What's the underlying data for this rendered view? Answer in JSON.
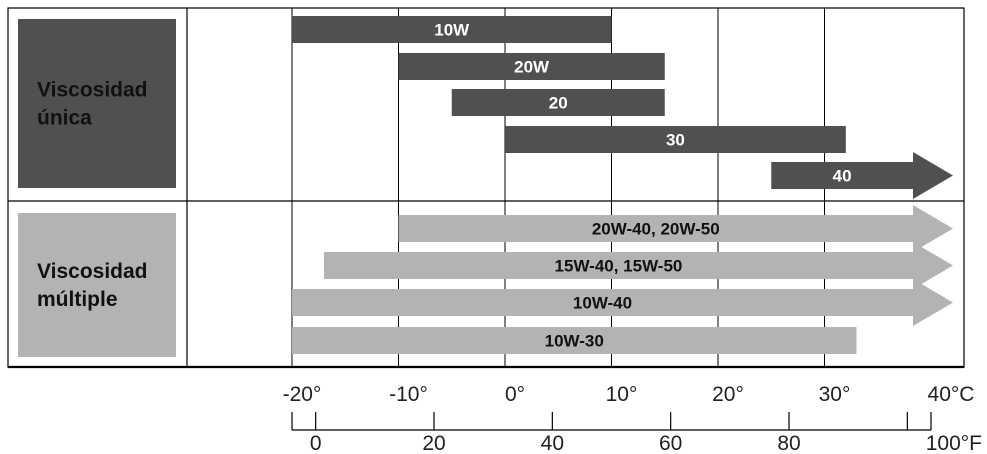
{
  "chart_data": {
    "type": "bar",
    "orientation": "horizontal-range",
    "groups": [
      {
        "label_lines": [
          "Viscosidad",
          "única"
        ],
        "color": "#505050",
        "label_color": "#ffffff",
        "bars": [
          {
            "label": "10W",
            "from_c": -20,
            "to_c": 10,
            "arrow": false
          },
          {
            "label": "20W",
            "from_c": -10,
            "to_c": 15,
            "arrow": false
          },
          {
            "label": "20",
            "from_c": -5,
            "to_c": 15,
            "arrow": false
          },
          {
            "label": "30",
            "from_c": 0,
            "to_c": 32,
            "arrow": false
          },
          {
            "label": "40",
            "from_c": 25,
            "to_c": 40,
            "arrow": true
          }
        ]
      },
      {
        "label_lines": [
          "Viscosidad",
          "múltiple"
        ],
        "color": "#b3b3b3",
        "label_color": "#111111",
        "bars": [
          {
            "label": "20W-40, 20W-50",
            "from_c": -10,
            "to_c": 40,
            "arrow": true
          },
          {
            "label": "15W-40, 15W-50",
            "from_c": -17,
            "to_c": 40,
            "arrow": true
          },
          {
            "label": "10W-40",
            "from_c": -20,
            "to_c": 40,
            "arrow": true
          },
          {
            "label": "10W-30",
            "from_c": -20,
            "to_c": 33,
            "arrow": false
          }
        ]
      }
    ],
    "celsius_axis": {
      "range": [
        -20,
        40
      ],
      "ticks": [
        -20,
        -10,
        0,
        10,
        20,
        30,
        40
      ],
      "tick_labels": [
        "-20°",
        "-10°",
        "0°",
        "10°",
        "20°",
        "30°",
        "40°C"
      ]
    },
    "fahrenheit_axis": {
      "ticks": [
        0,
        20,
        40,
        60,
        80,
        100
      ],
      "tick_labels": [
        "0",
        "20",
        "40",
        "60",
        "80",
        "100°F"
      ]
    },
    "grid": true
  }
}
